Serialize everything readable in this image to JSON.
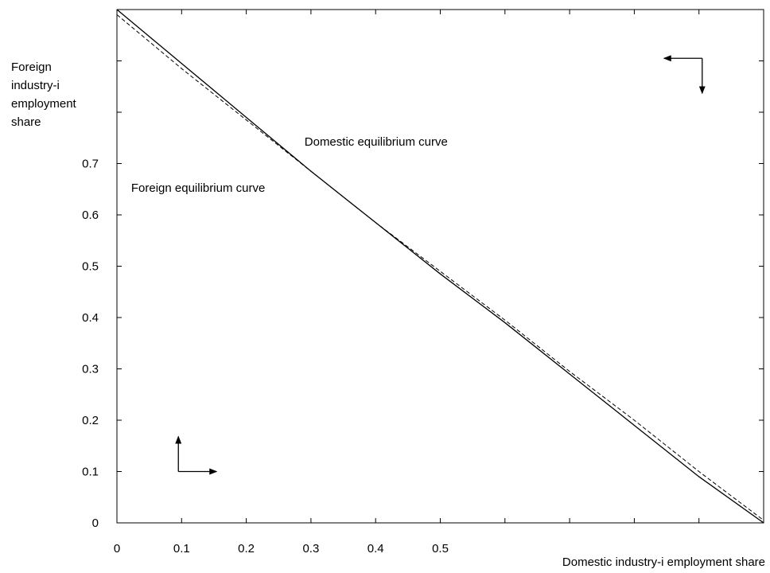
{
  "chart_data": {
    "type": "line",
    "xlabel": "Domestic industry-i employment share",
    "ylabel_lines": [
      "Foreign",
      "industry-i",
      "employment",
      "share"
    ],
    "x_ticks": [
      0,
      0.1,
      0.2,
      0.3,
      0.4,
      0.5
    ],
    "y_ticks": [
      0,
      0.1,
      0.2,
      0.3,
      0.4,
      0.5,
      0.6,
      0.7
    ],
    "xlim": [
      0,
      1
    ],
    "ylim": [
      0,
      1
    ],
    "grid": false,
    "series": [
      {
        "name": "Domestic equilibrium curve",
        "style": "dashed",
        "x": [
          0,
          0.1,
          0.2,
          0.3,
          0.4,
          0.5,
          0.6,
          0.7,
          0.8,
          0.9,
          1.0
        ],
        "y": [
          0.99,
          0.885,
          0.785,
          0.685,
          0.585,
          0.49,
          0.395,
          0.295,
          0.2,
          0.1,
          0.005
        ]
      },
      {
        "name": "Foreign equilibrium curve",
        "style": "solid",
        "x": [
          0,
          0.1,
          0.2,
          0.3,
          0.4,
          0.5,
          0.6,
          0.7,
          0.8,
          0.9,
          1.0
        ],
        "y": [
          1.0,
          0.895,
          0.79,
          0.685,
          0.585,
          0.485,
          0.39,
          0.29,
          0.19,
          0.09,
          0.0
        ]
      }
    ],
    "annotations": [
      {
        "text": "Domestic equilibrium curve",
        "x": 0.29,
        "y": 0.735
      },
      {
        "text": "Foreign equilibrium curve",
        "x": 0.022,
        "y": 0.645
      }
    ],
    "arrows": [
      {
        "position": "top-right",
        "x": 0.905,
        "y": 0.905,
        "directions": [
          "left",
          "down"
        ]
      },
      {
        "position": "bottom-left",
        "x": 0.095,
        "y": 0.1,
        "directions": [
          "up",
          "right"
        ]
      }
    ]
  }
}
